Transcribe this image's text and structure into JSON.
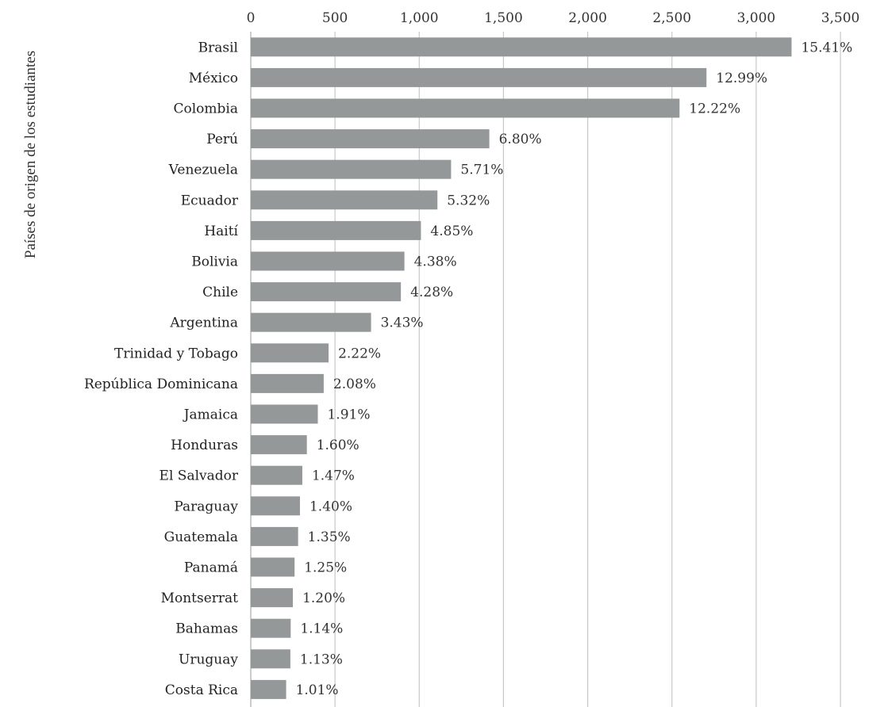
{
  "chart_data": {
    "type": "bar",
    "orientation": "horizontal",
    "title": "",
    "xlabel": "",
    "ylabel": "Países de origen de los estudiantes",
    "xlim": [
      0,
      3500
    ],
    "x_ticks": [
      0,
      500,
      1000,
      1500,
      2000,
      2500,
      3000,
      3500
    ],
    "x_tick_labels": [
      "0",
      "500",
      "1,000",
      "1,500",
      "2,000",
      "2,500",
      "3,000",
      "3,500"
    ],
    "x_axis_position": "top",
    "grid": true,
    "bar_color": "#959899",
    "categories": [
      "Brasil",
      "México",
      "Colombia",
      "Perú",
      "Venezuela",
      "Ecuador",
      "Haití",
      "Bolivia",
      "Chile",
      "Argentina",
      "Trinidad y Tobago",
      "República Dominicana",
      "Jamaica",
      "Honduras",
      "El Salvador",
      "Paraguay",
      "Guatemala",
      "Panamá",
      "Montserrat",
      "Bahamas",
      "Uruguay",
      "Costa Rica"
    ],
    "values": [
      3210,
      2705,
      2545,
      1416,
      1189,
      1108,
      1010,
      912,
      891,
      714,
      462,
      433,
      398,
      333,
      306,
      292,
      281,
      260,
      250,
      237,
      235,
      210
    ],
    "data_labels": [
      "15.41%",
      "12.99%",
      "12.22%",
      "6.80%",
      "5.71%",
      "5.32%",
      "4.85%",
      "4.38%",
      "4.28%",
      "3.43%",
      "2.22%",
      "2.08%",
      "1.91%",
      "1.60%",
      "1.47%",
      "1.40%",
      "1.35%",
      "1.25%",
      "1.20%",
      "1.14%",
      "1.13%",
      "1.01%"
    ]
  }
}
